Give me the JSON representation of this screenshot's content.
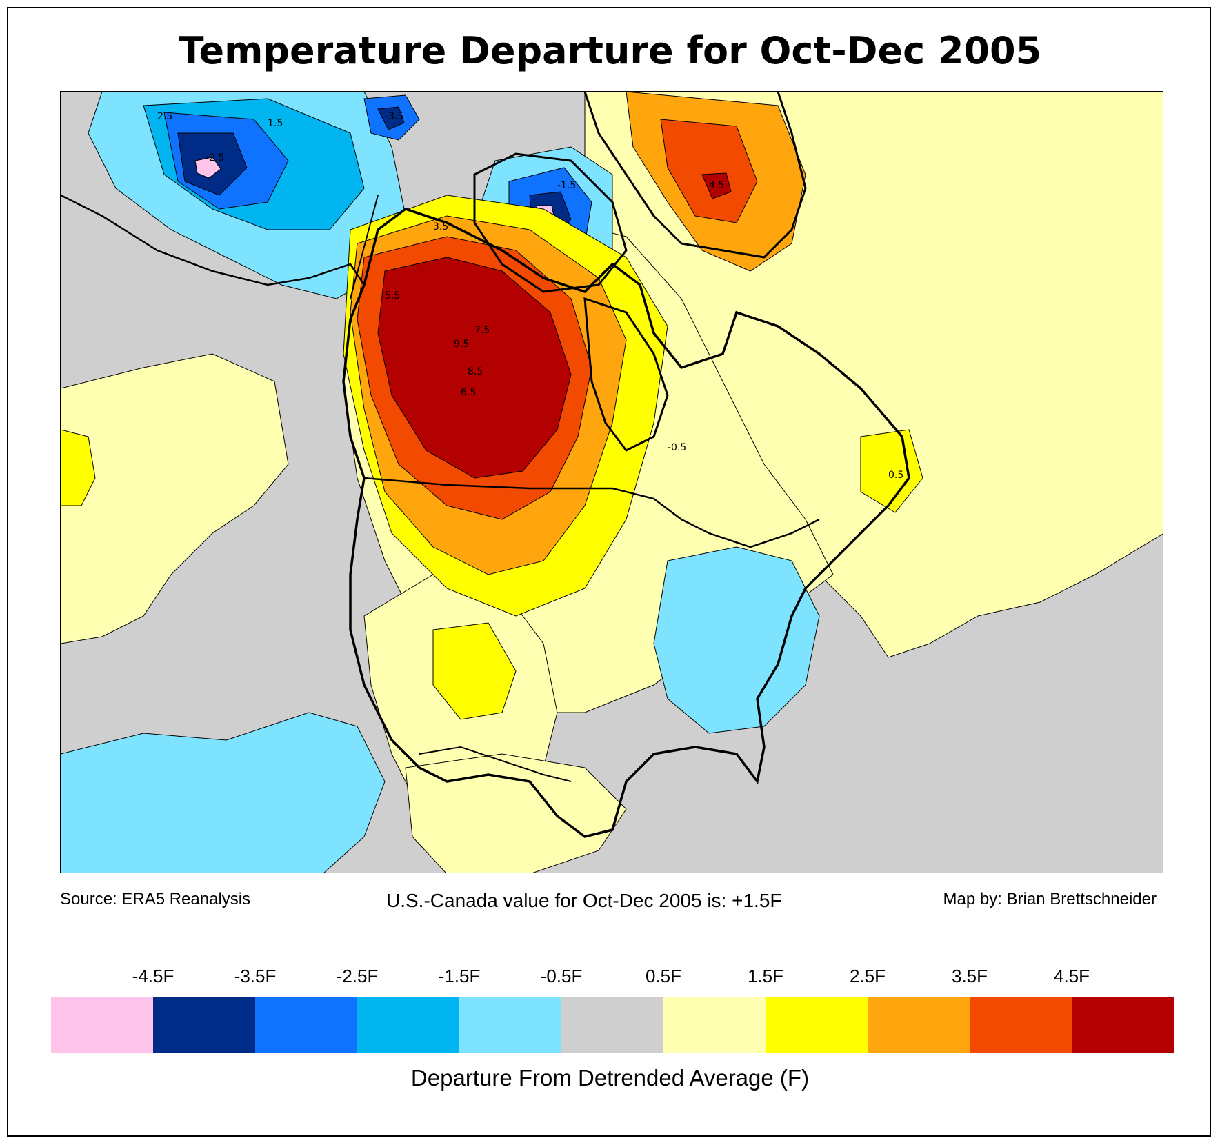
{
  "title": "Temperature Departure for Oct-Dec 2005",
  "footer": {
    "source": "Source: ERA5 Reanalysis",
    "summary": "U.S.-Canada value for Oct-Dec 2005 is: +1.5F",
    "credit": "Map by: Brian Brettschneider"
  },
  "legend": {
    "caption": "Departure From Detrended Average (F)",
    "tick_labels": [
      "-4.5F",
      "-3.5F",
      "-2.5F",
      "-1.5F",
      "-0.5F",
      "0.5F",
      "1.5F",
      "2.5F",
      "3.5F",
      "4.5F"
    ],
    "colors": [
      "#ffc4ea",
      "#002b87",
      "#0f73ff",
      "#00b5f0",
      "#7de3ff",
      "#cfcfcf",
      "#ffffb2",
      "#ffff00",
      "#ffa60f",
      "#f24a00",
      "#b30000"
    ]
  },
  "map": {
    "region": "North America",
    "contour_labels": [
      "2.5",
      "1.5",
      "0.5",
      "3.5",
      "4.5",
      "5.5",
      "6.5",
      "7.5",
      "8.5",
      "9.5",
      "-0.5",
      "-1.5",
      "-2.5",
      "-3.5"
    ]
  }
}
